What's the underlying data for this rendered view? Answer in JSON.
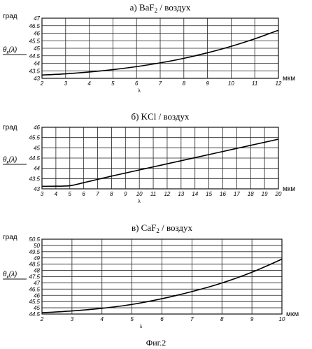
{
  "figure": {
    "caption": "Фиг.2"
  },
  "chart_data": [
    {
      "type": "line",
      "title_prefix": "а) BaF",
      "title_sub": "2",
      "title_suffix": " / воздух",
      "ylabel_unit": "град",
      "ylabel_sym": "θ",
      "ylabel_sub": "к",
      "ylabel_arg": "(λ)",
      "xlabel": "λ",
      "x_unit": "мкм",
      "xlim": [
        2,
        12
      ],
      "ylim": [
        43,
        47
      ],
      "xticks": [
        "2",
        "3",
        "4",
        "5",
        "6",
        "7",
        "8",
        "9",
        "10",
        "11",
        "12"
      ],
      "yticks": [
        "43",
        "43.5",
        "44",
        "44.5",
        "45",
        "45.5",
        "46",
        "46.5",
        "47"
      ],
      "series": [
        {
          "x": [
            2,
            3,
            4,
            5,
            6,
            7,
            8,
            9,
            10,
            11,
            12
          ],
          "y": [
            43.22,
            43.3,
            43.42,
            43.58,
            43.78,
            44.03,
            44.33,
            44.7,
            45.13,
            45.63,
            46.2
          ]
        }
      ]
    },
    {
      "type": "line",
      "title_prefix": "б) KCl / воздух",
      "title_sub": "",
      "title_suffix": "",
      "ylabel_unit": "град",
      "ylabel_sym": "θ",
      "ylabel_sub": "к",
      "ylabel_arg": "(λ)",
      "xlabel": "λ",
      "x_unit": "мкм",
      "xlim": [
        3,
        20
      ],
      "ylim": [
        43,
        46
      ],
      "xticks": [
        "3",
        "4",
        "5",
        "6",
        "7",
        "8",
        "9",
        "10",
        "11",
        "12",
        "13",
        "14",
        "15",
        "16",
        "17",
        "18",
        "19",
        "20"
      ],
      "yticks": [
        "43",
        "43.5",
        "44",
        "44.5",
        "45",
        "45.5",
        "46"
      ],
      "series": [
        {
          "x": [
            3,
            4,
            5,
            6,
            7,
            8,
            9,
            10,
            11,
            12,
            13,
            14,
            15,
            16,
            17,
            18,
            19,
            20
          ],
          "y": [
            43.12,
            43.13,
            43.15,
            43.3,
            43.46,
            43.62,
            43.77,
            43.92,
            44.07,
            44.22,
            44.37,
            44.52,
            44.67,
            44.82,
            44.97,
            45.12,
            45.27,
            45.42
          ]
        }
      ]
    },
    {
      "type": "line",
      "title_prefix": "в) CaF",
      "title_sub": "2",
      "title_suffix": " / воздух",
      "ylabel_unit": "град",
      "ylabel_sym": "θ",
      "ylabel_sub": "к",
      "ylabel_arg": "(λ)",
      "xlabel": "λ",
      "x_unit": "мкм",
      "xlim": [
        2,
        10
      ],
      "ylim": [
        44.5,
        50.5
      ],
      "xticks": [
        "2",
        "3",
        "4",
        "5",
        "6",
        "7",
        "8",
        "9",
        "10"
      ],
      "yticks": [
        "44.5",
        "45",
        "45.5",
        "46",
        "46.5",
        "47",
        "47.5",
        "48",
        "48.5",
        "49",
        "49.5",
        "50",
        "50.5"
      ],
      "series": [
        {
          "x": [
            2,
            3,
            4,
            5,
            6,
            7,
            8,
            9,
            10
          ],
          "y": [
            44.6,
            44.75,
            44.96,
            45.27,
            45.73,
            46.3,
            46.99,
            47.85,
            48.9
          ]
        }
      ]
    }
  ]
}
